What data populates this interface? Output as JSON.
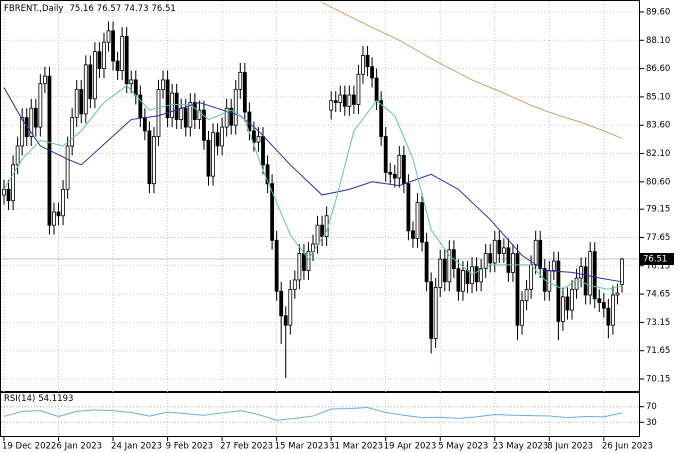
{
  "chart_data": [
    {
      "type": "candlestick",
      "title": "FBRENT.,Daily",
      "categories": [
        "19 Dec 2022",
        null,
        null,
        null,
        null,
        null,
        null,
        null,
        null,
        null,
        null,
        null,
        "6 Jan 2023",
        null,
        null,
        null,
        null,
        null,
        null,
        null,
        null,
        null,
        null,
        null,
        "24 Jan 2023",
        null,
        null,
        null,
        null,
        null,
        null,
        null,
        null,
        null,
        null,
        null,
        "9 Feb 2023",
        null,
        null,
        null,
        null,
        null,
        null,
        null,
        null,
        null,
        null,
        null,
        "27 Feb 2023",
        null,
        null,
        null,
        null,
        null,
        null,
        null,
        null,
        null,
        null,
        null,
        "15 Mar 2023",
        null,
        null,
        null,
        null,
        null,
        null,
        null,
        null,
        null,
        null,
        null,
        "31 Mar 2023",
        null,
        null,
        null,
        null,
        null,
        null,
        null,
        null,
        null,
        null,
        null,
        "19 Apr 2023",
        null,
        null,
        null,
        null,
        null,
        null,
        null,
        null,
        null,
        null,
        null,
        "5 May 2023",
        null,
        null,
        null,
        null,
        null,
        null,
        null,
        null,
        null,
        null,
        null,
        "23 May 2023",
        null,
        null,
        null,
        null,
        null,
        null,
        null,
        null,
        null,
        null,
        null,
        "8 Jun 2023",
        null,
        null,
        null,
        null,
        null,
        null,
        null,
        null,
        null,
        null,
        null,
        "26 Jun 2023",
        null,
        null,
        null,
        null
      ],
      "open": [
        79.9,
        80.2,
        79.6,
        81.5,
        82.5,
        84.0,
        83.0,
        84.5,
        83.5,
        85.8,
        86.2,
        78.3,
        79.0,
        78.8,
        80.2,
        82.5,
        84.0,
        85.5,
        84.2,
        86.8,
        85.0,
        87.5,
        86.6,
        88.0,
        88.6,
        87.0,
        86.5,
        88.3,
        85.8,
        86.0,
        85.2,
        84.0,
        83.3,
        80.5,
        83.0,
        85.5,
        86.0,
        84.0,
        85.3,
        83.9,
        84.5,
        83.5,
        84.8,
        83.9,
        84.4,
        82.8,
        80.9,
        83.2,
        82.5,
        83.5,
        84.5,
        83.6,
        85.5,
        86.4,
        84.3,
        83.3,
        82.7,
        83.0,
        81.5,
        80.5,
        77.5,
        74.8,
        73.5,
        73.0,
        74.9,
        75.4,
        76.8,
        75.9,
        76.9,
        77.3,
        78.3,
        77.7,
        84.4,
        84.9,
        84.8,
        85.2,
        84.6,
        85.2,
        84.7,
        86.3,
        87.3,
        86.7,
        86.1,
        84.9,
        83.0,
        81.1,
        81.0,
        80.8,
        82.0,
        80.5,
        78.0,
        77.6,
        79.5,
        77.4,
        75.3,
        72.3,
        75.0,
        76.5,
        75.3,
        77.0,
        76.0,
        74.8,
        75.9,
        75.2,
        76.1,
        75.3,
        76.0,
        76.8,
        76.3,
        77.5,
        76.8,
        77.1,
        75.8,
        76.8,
        73.0,
        74.3,
        74.9,
        76.2,
        77.5,
        76.0,
        74.8,
        75.9,
        76.4,
        73.2,
        74.5,
        73.8,
        74.9,
        75.5,
        76.1,
        74.6,
        76.9,
        74.4,
        74.2,
        73.9,
        73.0,
        74.6,
        75.16
      ],
      "high": [
        80.7,
        80.7,
        82.0,
        83.0,
        84.5,
        84.5,
        85.0,
        85.0,
        86.3,
        86.7,
        86.7,
        79.5,
        79.5,
        80.7,
        83.0,
        84.5,
        86.0,
        86.0,
        87.3,
        87.3,
        88.0,
        88.0,
        88.5,
        89.1,
        89.1,
        87.5,
        88.8,
        88.8,
        86.5,
        86.5,
        85.7,
        84.5,
        83.8,
        83.5,
        86.0,
        86.5,
        86.5,
        85.8,
        85.8,
        85.0,
        85.0,
        85.3,
        85.3,
        84.9,
        84.9,
        83.3,
        83.7,
        83.7,
        84.0,
        85.0,
        85.0,
        86.0,
        86.9,
        86.9,
        84.8,
        83.8,
        83.5,
        83.5,
        82.0,
        81.0,
        78.0,
        75.3,
        74.0,
        75.4,
        75.9,
        77.3,
        77.3,
        77.4,
        77.8,
        78.8,
        78.8,
        79.3,
        85.4,
        85.4,
        85.7,
        85.7,
        85.7,
        85.7,
        86.8,
        87.8,
        87.8,
        87.2,
        86.6,
        85.4,
        83.5,
        81.6,
        81.5,
        82.5,
        82.5,
        81.0,
        78.5,
        80.0,
        80.0,
        77.9,
        75.8,
        75.5,
        77.0,
        77.0,
        77.5,
        77.5,
        76.5,
        76.4,
        76.4,
        76.6,
        76.6,
        76.5,
        77.3,
        77.3,
        78.0,
        78.0,
        77.6,
        77.6,
        77.3,
        77.3,
        74.8,
        75.4,
        76.7,
        78.0,
        78.0,
        76.5,
        76.4,
        76.9,
        76.9,
        75.0,
        75.0,
        75.4,
        76.0,
        76.6,
        76.6,
        77.4,
        77.4,
        74.9,
        74.7,
        74.4,
        75.1,
        75.2,
        76.57
      ],
      "low": [
        79.4,
        79.1,
        79.1,
        81.0,
        82.0,
        82.5,
        82.5,
        83.0,
        83.0,
        85.3,
        77.8,
        77.8,
        78.3,
        78.3,
        79.7,
        82.0,
        83.5,
        83.7,
        83.7,
        84.5,
        84.5,
        86.1,
        86.1,
        87.5,
        86.5,
        86.0,
        86.0,
        85.3,
        85.3,
        84.7,
        83.5,
        82.8,
        80.0,
        80.0,
        82.5,
        85.0,
        83.5,
        83.5,
        83.4,
        83.4,
        83.0,
        83.0,
        83.4,
        83.4,
        82.3,
        80.4,
        80.4,
        82.0,
        82.0,
        83.0,
        83.1,
        83.1,
        85.0,
        83.8,
        82.8,
        82.2,
        82.2,
        81.0,
        80.0,
        77.0,
        74.3,
        72.0,
        70.2,
        72.5,
        74.4,
        74.9,
        75.4,
        75.4,
        76.4,
        76.8,
        77.2,
        77.2,
        83.9,
        84.3,
        84.3,
        84.1,
        84.1,
        84.2,
        84.2,
        85.8,
        86.2,
        85.6,
        84.4,
        82.5,
        80.6,
        80.5,
        80.3,
        80.3,
        80.0,
        77.5,
        77.1,
        77.1,
        76.9,
        74.8,
        71.5,
        71.8,
        74.5,
        74.8,
        74.8,
        75.5,
        74.3,
        74.3,
        74.7,
        74.7,
        74.8,
        74.8,
        75.5,
        75.8,
        75.8,
        76.3,
        76.3,
        75.3,
        75.3,
        72.2,
        72.5,
        73.8,
        74.4,
        75.7,
        75.5,
        74.3,
        74.3,
        75.4,
        72.2,
        72.7,
        73.3,
        73.3,
        74.4,
        75.0,
        74.1,
        74.1,
        73.9,
        73.7,
        73.4,
        72.3,
        72.5,
        74.1,
        74.73
      ],
      "close": [
        80.2,
        79.6,
        81.5,
        82.5,
        84.0,
        83.0,
        84.5,
        83.5,
        85.8,
        86.2,
        78.3,
        79.0,
        78.8,
        80.2,
        82.5,
        84.0,
        85.5,
        84.2,
        86.8,
        85.0,
        87.5,
        86.6,
        88.0,
        88.6,
        87.0,
        86.5,
        88.3,
        85.8,
        86.0,
        85.2,
        84.0,
        83.3,
        80.5,
        83.0,
        85.5,
        86.0,
        84.0,
        85.3,
        83.9,
        84.5,
        83.5,
        84.8,
        83.9,
        84.4,
        82.8,
        80.9,
        83.2,
        82.5,
        83.5,
        84.5,
        83.6,
        85.5,
        86.4,
        84.3,
        83.3,
        82.7,
        83.0,
        81.5,
        80.5,
        77.5,
        74.8,
        73.5,
        73.0,
        74.9,
        75.4,
        76.8,
        75.9,
        76.9,
        77.3,
        78.3,
        77.7,
        78.8,
        84.9,
        84.8,
        85.2,
        84.6,
        85.2,
        84.7,
        86.3,
        87.3,
        86.7,
        86.1,
        84.9,
        83.0,
        81.1,
        81.0,
        80.8,
        82.0,
        80.5,
        78.0,
        77.6,
        79.5,
        77.4,
        75.3,
        72.3,
        75.0,
        76.5,
        75.3,
        77.0,
        76.0,
        74.8,
        75.9,
        75.2,
        76.1,
        75.3,
        76.0,
        76.8,
        76.3,
        77.5,
        76.8,
        77.1,
        75.8,
        76.8,
        73.0,
        74.3,
        74.9,
        76.2,
        77.5,
        76.0,
        74.8,
        75.9,
        76.4,
        73.2,
        74.5,
        73.8,
        74.9,
        75.5,
        76.1,
        74.6,
        76.9,
        74.4,
        74.2,
        73.9,
        73.0,
        74.6,
        74.7,
        76.51
      ],
      "up_color": "#ffffff",
      "down_color": "#000000",
      "color": "#000000",
      "overlays": [
        {
          "color": "#2e2ea8",
          "x": [
            0,
            4,
            8,
            14,
            17,
            28,
            34,
            43,
            52,
            56,
            63,
            70,
            76,
            81,
            87,
            94,
            100,
            107,
            114,
            119,
            125,
            131,
            136
          ],
          "values": [
            85.6,
            83.9,
            82.5,
            81.8,
            81.5,
            83.9,
            84.1,
            84.8,
            84.1,
            83.3,
            81.5,
            79.9,
            80.2,
            80.6,
            80.4,
            81.0,
            80.2,
            78.6,
            76.7,
            75.9,
            75.8,
            75.5,
            75.3
          ]
        },
        {
          "color": "#5fc8a0",
          "x": [
            0,
            4,
            8,
            13,
            17,
            22,
            27,
            32,
            37,
            41,
            45,
            50,
            53,
            57,
            63,
            67,
            71,
            73,
            77,
            82,
            86,
            90,
            94,
            98,
            103,
            107,
            112,
            116,
            119,
            123,
            126,
            129,
            133,
            136
          ],
          "values": [
            80.2,
            81.8,
            82.8,
            82.5,
            83.3,
            84.8,
            85.7,
            84.4,
            84.7,
            84.7,
            83.9,
            84.4,
            83.9,
            81.2,
            77.8,
            76.5,
            78.0,
            79.6,
            83.3,
            84.9,
            84.1,
            81.8,
            78.05,
            76.7,
            75.7,
            76.2,
            76.2,
            76.2,
            75.4,
            74.9,
            75.4,
            75.1,
            74.9,
            75.1
          ]
        },
        {
          "color": "#d4a06a",
          "x": [
            70,
            75,
            80,
            87,
            95,
            103,
            110,
            116,
            121,
            127,
            132,
            136
          ],
          "values": [
            90.1,
            89.5,
            88.9,
            88.1,
            87.0,
            86.0,
            85.3,
            84.65,
            84.2,
            83.75,
            83.3,
            82.9
          ]
        }
      ],
      "ylim": [
        69.46,
        90.13
      ],
      "yticks": [
        {
          "value": 89.6,
          "label": "89.60"
        },
        {
          "value": 88.1,
          "label": "88.10"
        },
        {
          "value": 86.6,
          "label": "86.60"
        },
        {
          "value": 85.1,
          "label": "85.10"
        },
        {
          "value": 83.6,
          "label": "83.60"
        },
        {
          "value": 82.1,
          "label": "82.10"
        },
        {
          "value": 80.6,
          "label": "80.60"
        },
        {
          "value": 79.15,
          "label": "79.15"
        },
        {
          "value": 77.65,
          "label": "77.65"
        },
        {
          "value": 76.15,
          "label": "76.15"
        },
        {
          "value": 74.65,
          "label": "74.65"
        },
        {
          "value": 73.15,
          "label": "73.15"
        },
        {
          "value": 71.65,
          "label": "71.65"
        },
        {
          "value": 70.15,
          "label": "70.15"
        }
      ],
      "grid": true,
      "last_price_marker": true
    },
    {
      "type": "line",
      "title": "RSI(14)",
      "color": "#6aaee0",
      "x": [
        0,
        4,
        8,
        12,
        16,
        20,
        24,
        28,
        32,
        36,
        40,
        44,
        48,
        52,
        56,
        60,
        64,
        68,
        72,
        76,
        80,
        84,
        88,
        92,
        96,
        100,
        104,
        108,
        112,
        116,
        120,
        124,
        128,
        132,
        136
      ],
      "values": [
        45,
        58,
        60,
        45,
        58,
        62,
        60,
        55,
        46,
        56,
        52,
        48,
        54,
        60,
        50,
        35,
        40,
        46,
        64,
        65,
        68,
        55,
        48,
        42,
        43,
        40,
        44,
        50,
        48,
        47,
        46,
        42,
        45,
        44,
        54.1193
      ],
      "ylim": [
        0,
        100
      ],
      "yticks": [
        70,
        30
      ]
    }
  ]
}
